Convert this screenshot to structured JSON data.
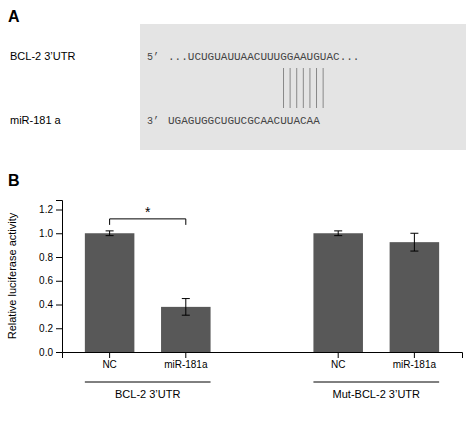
{
  "chart_data": [
    {
      "type": "sequence_alignment",
      "title": "A",
      "annotations": [
        "BCL-2 3’UTR",
        "miR-181 a",
        "5’",
        "3’"
      ],
      "sequences": [
        "...UCUGUAUUAACUUUGGAAUGUAC...",
        "UGAGUGGCUGUCGCAACUUACAA"
      ],
      "match_lines": 7
    },
    {
      "type": "bar",
      "title": "B",
      "categories": [
        "NC",
        "miR-181a",
        "NC",
        "miR-181a"
      ],
      "values": [
        1.0,
        0.38,
        1.0,
        0.925
      ],
      "errors": [
        0.02,
        0.07,
        0.02,
        0.075
      ],
      "color": "#585858",
      "ylabel": "Relative luciferase activity",
      "ylim": [
        0,
        1.28
      ],
      "yticks": [
        {
          "value": 0.0,
          "label": "0.0"
        },
        0.2,
        0.4,
        0.6,
        0.8,
        {
          "value": 1.0,
          "label": "1.0"
        },
        1.2
      ],
      "group_labels": [
        "BCL-2 3’UTR",
        "Mut-BCL-2 3’UTR"
      ],
      "annotations": [
        "*"
      ]
    }
  ]
}
